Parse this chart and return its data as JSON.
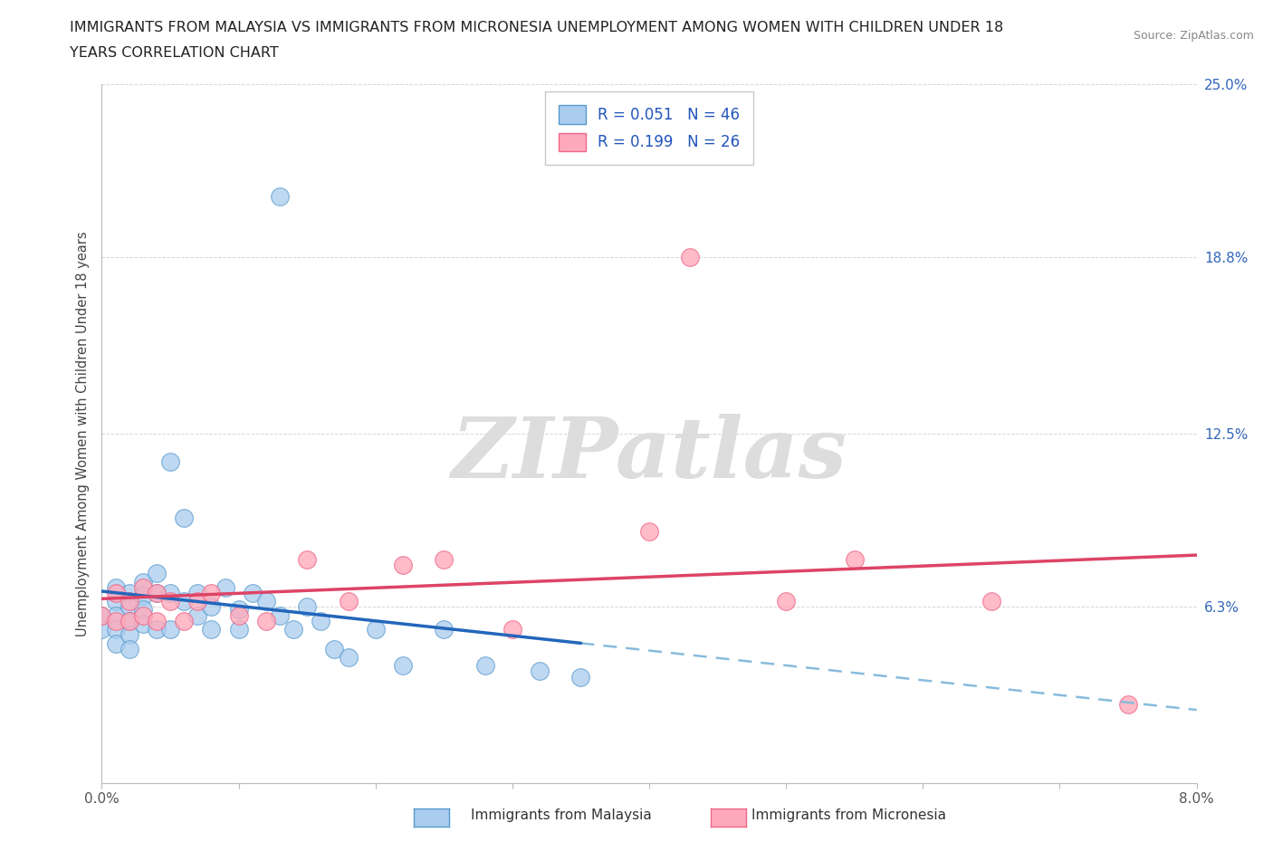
{
  "title_line1": "IMMIGRANTS FROM MALAYSIA VS IMMIGRANTS FROM MICRONESIA UNEMPLOYMENT AMONG WOMEN WITH CHILDREN UNDER 18",
  "title_line2": "YEARS CORRELATION CHART",
  "source": "Source: ZipAtlas.com",
  "ylabel": "Unemployment Among Women with Children Under 18 years",
  "xlim": [
    0.0,
    0.08
  ],
  "ylim": [
    0.0,
    0.25
  ],
  "yticks": [
    0.0,
    0.063,
    0.125,
    0.188,
    0.25
  ],
  "ytick_labels": [
    "",
    "6.3%",
    "12.5%",
    "18.8%",
    "25.0%"
  ],
  "xticks": [
    0.0,
    0.01,
    0.02,
    0.03,
    0.04,
    0.05,
    0.06,
    0.07,
    0.08
  ],
  "xtick_labels": [
    "0.0%",
    "",
    "",
    "",
    "",
    "",
    "",
    "",
    "8.0%"
  ],
  "malaysia_color": "#aaccee",
  "malaysia_edge": "#5599cc",
  "micronesia_color": "#ffaabb",
  "micronesia_edge": "#ee6688",
  "malaysia_line_color": "#2266bb",
  "micronesia_line_color": "#dd4466",
  "dash_color": "#88bbdd",
  "legend_color": "#2255bb",
  "legend_R_malaysia": "R = 0.051",
  "legend_N_malaysia": "N = 46",
  "legend_R_micronesia": "R = 0.199",
  "legend_N_micronesia": "N = 26",
  "malaysia_x": [
    0.0,
    0.0,
    0.001,
    0.001,
    0.001,
    0.001,
    0.001,
    0.002,
    0.002,
    0.002,
    0.002,
    0.002,
    0.003,
    0.003,
    0.003,
    0.003,
    0.004,
    0.004,
    0.004,
    0.005,
    0.005,
    0.005,
    0.006,
    0.006,
    0.007,
    0.007,
    0.008,
    0.008,
    0.009,
    0.01,
    0.01,
    0.011,
    0.012,
    0.013,
    0.014,
    0.015,
    0.016,
    0.017,
    0.018,
    0.02,
    0.022,
    0.025,
    0.028,
    0.032,
    0.035,
    0.013
  ],
  "malaysia_y": [
    0.06,
    0.055,
    0.07,
    0.065,
    0.06,
    0.055,
    0.05,
    0.068,
    0.063,
    0.058,
    0.053,
    0.048,
    0.072,
    0.067,
    0.062,
    0.057,
    0.075,
    0.068,
    0.055,
    0.115,
    0.068,
    0.055,
    0.095,
    0.065,
    0.068,
    0.06,
    0.063,
    0.055,
    0.07,
    0.062,
    0.055,
    0.068,
    0.065,
    0.06,
    0.055,
    0.063,
    0.058,
    0.048,
    0.045,
    0.055,
    0.042,
    0.055,
    0.042,
    0.04,
    0.038,
    0.21
  ],
  "micronesia_x": [
    0.0,
    0.001,
    0.001,
    0.002,
    0.002,
    0.003,
    0.003,
    0.004,
    0.004,
    0.005,
    0.006,
    0.007,
    0.008,
    0.01,
    0.012,
    0.015,
    0.018,
    0.022,
    0.025,
    0.03,
    0.04,
    0.043,
    0.05,
    0.055,
    0.065,
    0.075
  ],
  "micronesia_y": [
    0.06,
    0.068,
    0.058,
    0.065,
    0.058,
    0.07,
    0.06,
    0.068,
    0.058,
    0.065,
    0.058,
    0.065,
    0.068,
    0.06,
    0.058,
    0.08,
    0.065,
    0.078,
    0.08,
    0.055,
    0.09,
    0.188,
    0.065,
    0.08,
    0.065,
    0.028
  ],
  "watermark": "ZIPatlas",
  "background_color": "#ffffff",
  "grid_color": "#cccccc"
}
